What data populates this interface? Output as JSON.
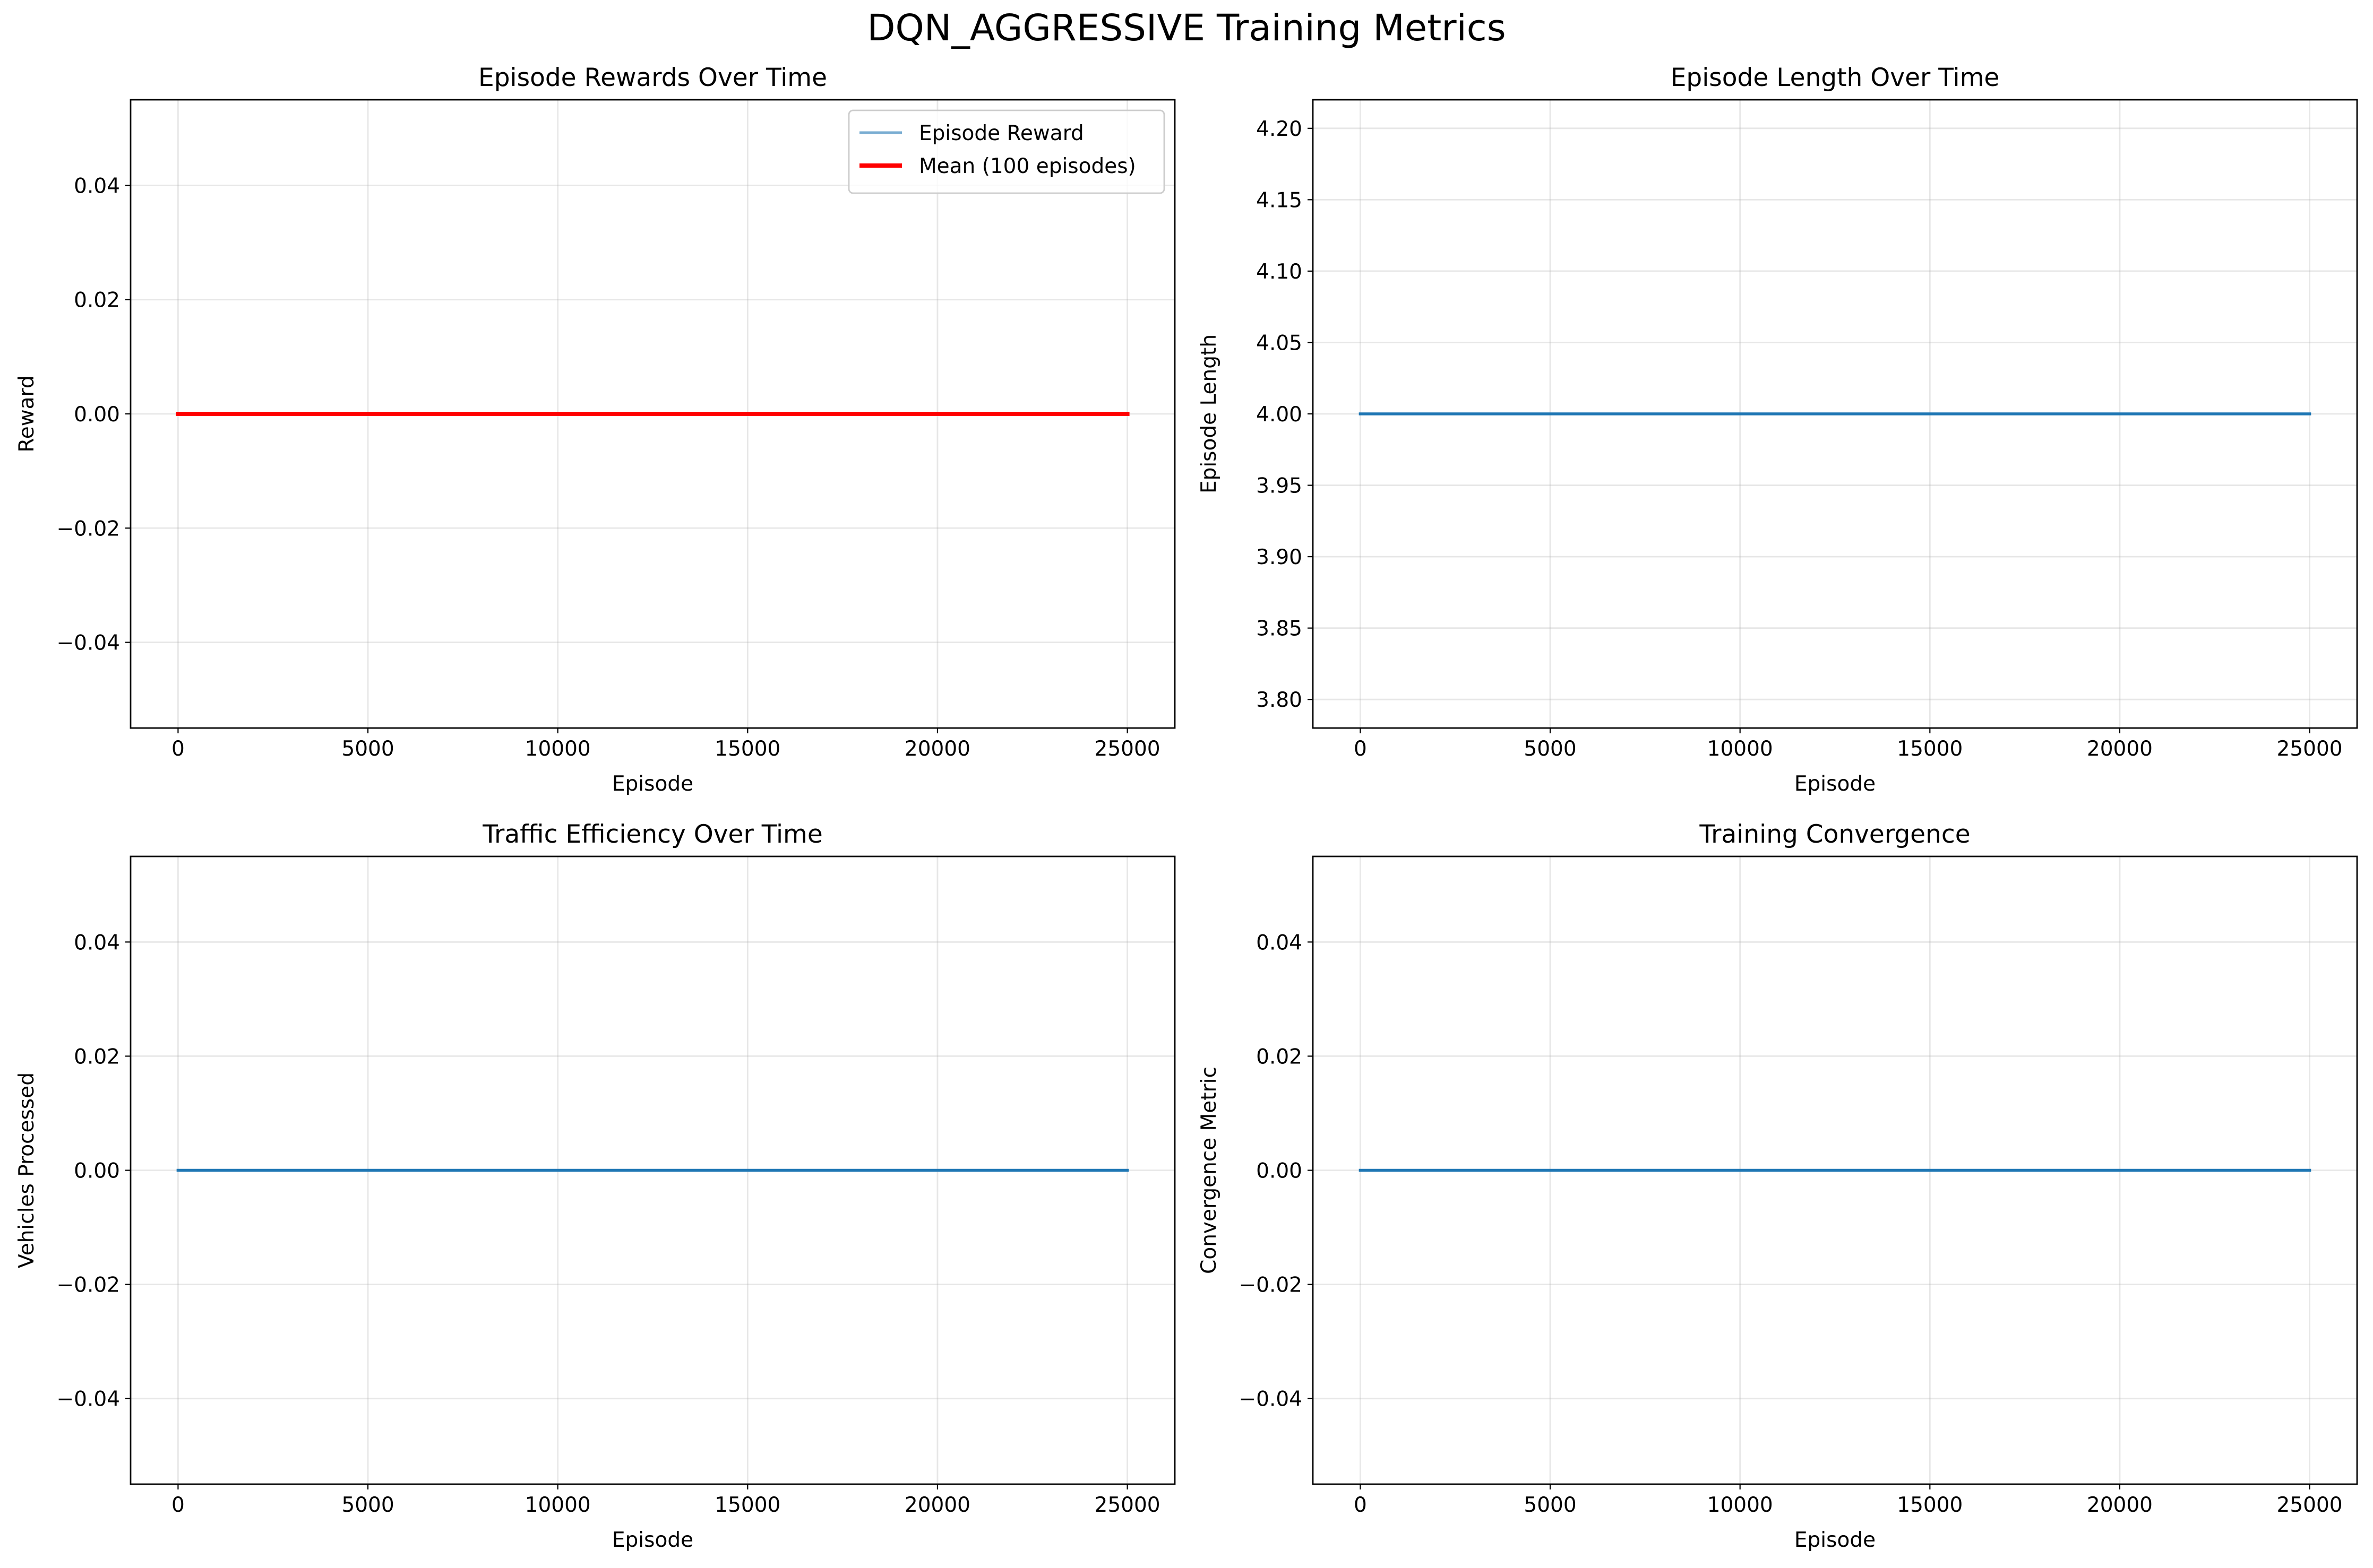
{
  "figure": {
    "title": "DQN_AGGRESSIVE Training Metrics"
  },
  "chart_data": [
    {
      "type": "line",
      "title": "Episode Rewards Over Time",
      "xlabel": "Episode",
      "ylabel": "Reward",
      "xlim": [
        -1250,
        26250
      ],
      "ylim": [
        -0.055,
        0.055
      ],
      "xticks": [
        0,
        5000,
        10000,
        15000,
        20000,
        25000
      ],
      "xtick_labels": [
        "0",
        "5000",
        "10000",
        "15000",
        "20000",
        "25000"
      ],
      "yticks": [
        -0.04,
        -0.02,
        0.0,
        0.02,
        0.04
      ],
      "ytick_labels": [
        "−0.04",
        "−0.02",
        "0.00",
        "0.02",
        "0.04"
      ],
      "grid": true,
      "legend": "top-right",
      "series": [
        {
          "name": "Episode Reward",
          "color": "#1f77b4",
          "alpha": 0.6,
          "width": "thin",
          "x": [
            0,
            25000
          ],
          "y": [
            0,
            0
          ]
        },
        {
          "name": "Mean (100 episodes)",
          "color": "#ff0000",
          "alpha": 1.0,
          "width": "thick",
          "x": [
            0,
            25000
          ],
          "y": [
            0,
            0
          ]
        }
      ]
    },
    {
      "type": "line",
      "title": "Episode Length Over Time",
      "xlabel": "Episode",
      "ylabel": "Episode Length",
      "xlim": [
        -1250,
        26250
      ],
      "ylim": [
        3.78,
        4.22
      ],
      "xticks": [
        0,
        5000,
        10000,
        15000,
        20000,
        25000
      ],
      "xtick_labels": [
        "0",
        "5000",
        "10000",
        "15000",
        "20000",
        "25000"
      ],
      "yticks": [
        3.8,
        3.85,
        3.9,
        3.95,
        4.0,
        4.05,
        4.1,
        4.15,
        4.2
      ],
      "ytick_labels": [
        "3.80",
        "3.85",
        "3.90",
        "3.95",
        "4.00",
        "4.05",
        "4.10",
        "4.15",
        "4.20"
      ],
      "grid": true,
      "series": [
        {
          "color": "#1f77b4",
          "alpha": 1.0,
          "width": "normal",
          "x": [
            0,
            25000
          ],
          "y": [
            4,
            4
          ]
        }
      ]
    },
    {
      "type": "line",
      "title": "Traffic Efficiency Over Time",
      "xlabel": "Episode",
      "ylabel": "Vehicles Processed",
      "xlim": [
        -1250,
        26250
      ],
      "ylim": [
        -0.055,
        0.055
      ],
      "xticks": [
        0,
        5000,
        10000,
        15000,
        20000,
        25000
      ],
      "xtick_labels": [
        "0",
        "5000",
        "10000",
        "15000",
        "20000",
        "25000"
      ],
      "yticks": [
        -0.04,
        -0.02,
        0.0,
        0.02,
        0.04
      ],
      "ytick_labels": [
        "−0.04",
        "−0.02",
        "0.00",
        "0.02",
        "0.04"
      ],
      "grid": true,
      "series": [
        {
          "color": "#1f77b4",
          "alpha": 1.0,
          "width": "normal",
          "x": [
            0,
            25000
          ],
          "y": [
            0,
            0
          ]
        }
      ]
    },
    {
      "type": "line",
      "title": "Training Convergence",
      "xlabel": "Episode",
      "ylabel": "Convergence Metric",
      "xlim": [
        -1250,
        26250
      ],
      "ylim": [
        -0.055,
        0.055
      ],
      "xticks": [
        0,
        5000,
        10000,
        15000,
        20000,
        25000
      ],
      "xtick_labels": [
        "0",
        "5000",
        "10000",
        "15000",
        "20000",
        "25000"
      ],
      "yticks": [
        -0.04,
        -0.02,
        0.0,
        0.02,
        0.04
      ],
      "ytick_labels": [
        "−0.04",
        "−0.02",
        "0.00",
        "0.02",
        "0.04"
      ],
      "grid": true,
      "series": [
        {
          "color": "#1f77b4",
          "alpha": 1.0,
          "width": "normal",
          "x": [
            0,
            25000
          ],
          "y": [
            0,
            0
          ]
        }
      ]
    }
  ]
}
